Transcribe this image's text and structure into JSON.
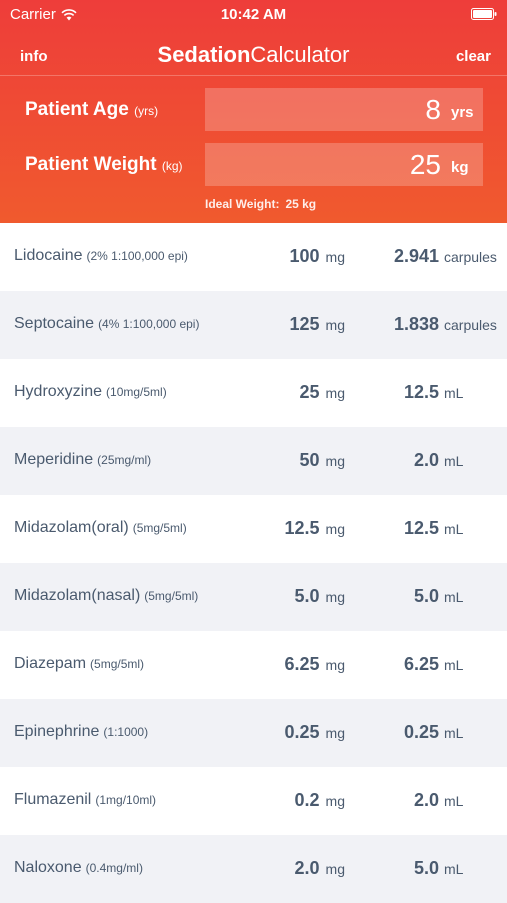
{
  "status_bar": {
    "carrier": "Carrier",
    "time": "10:42 AM"
  },
  "nav": {
    "info_label": "info",
    "title_bold": "Sedation",
    "title_light": "Calculator",
    "clear_label": "clear"
  },
  "patient": {
    "age_label": "Patient Age",
    "age_label_unit": "(yrs)",
    "age_value": "8",
    "age_unit": "yrs",
    "weight_label": "Patient Weight",
    "weight_label_unit": "(kg)",
    "weight_value": "25",
    "weight_unit": "kg",
    "ideal_label": "Ideal Weight:",
    "ideal_value": "25 kg"
  },
  "colors": {
    "header_top": "#ee3d3a",
    "header_bottom": "#f05a2e",
    "text": "#4a5a6e",
    "row_alt": "#f1f2f6"
  },
  "drugs": [
    {
      "name": "Lidocaine",
      "conc": "(2% 1:100,000 epi)",
      "dose": "100",
      "dose_unit": "mg",
      "vol": "2.941",
      "vol_unit": "carpules"
    },
    {
      "name": "Septocaine",
      "conc": "(4% 1:100,000 epi)",
      "dose": "125",
      "dose_unit": "mg",
      "vol": "1.838",
      "vol_unit": "carpules"
    },
    {
      "name": "Hydroxyzine",
      "conc": "(10mg/5ml)",
      "dose": "25",
      "dose_unit": "mg",
      "vol": "12.5",
      "vol_unit": "mL"
    },
    {
      "name": "Meperidine",
      "conc": "(25mg/ml)",
      "dose": "50",
      "dose_unit": "mg",
      "vol": "2.0",
      "vol_unit": "mL"
    },
    {
      "name": "Midazolam(oral)",
      "conc": "(5mg/5ml)",
      "dose": "12.5",
      "dose_unit": "mg",
      "vol": "12.5",
      "vol_unit": "mL"
    },
    {
      "name": "Midazolam(nasal)",
      "conc": "(5mg/5ml)",
      "dose": "5.0",
      "dose_unit": "mg",
      "vol": "5.0",
      "vol_unit": "mL"
    },
    {
      "name": "Diazepam",
      "conc": "(5mg/5ml)",
      "dose": "6.25",
      "dose_unit": "mg",
      "vol": "6.25",
      "vol_unit": "mL"
    },
    {
      "name": "Epinephrine",
      "conc": "(1:1000)",
      "dose": "0.25",
      "dose_unit": "mg",
      "vol": "0.25",
      "vol_unit": "mL"
    },
    {
      "name": "Flumazenil",
      "conc": "(1mg/10ml)",
      "dose": "0.2",
      "dose_unit": "mg",
      "vol": "2.0",
      "vol_unit": "mL"
    },
    {
      "name": "Naloxone",
      "conc": "(0.4mg/ml)",
      "dose": "2.0",
      "dose_unit": "mg",
      "vol": "5.0",
      "vol_unit": "mL"
    }
  ]
}
